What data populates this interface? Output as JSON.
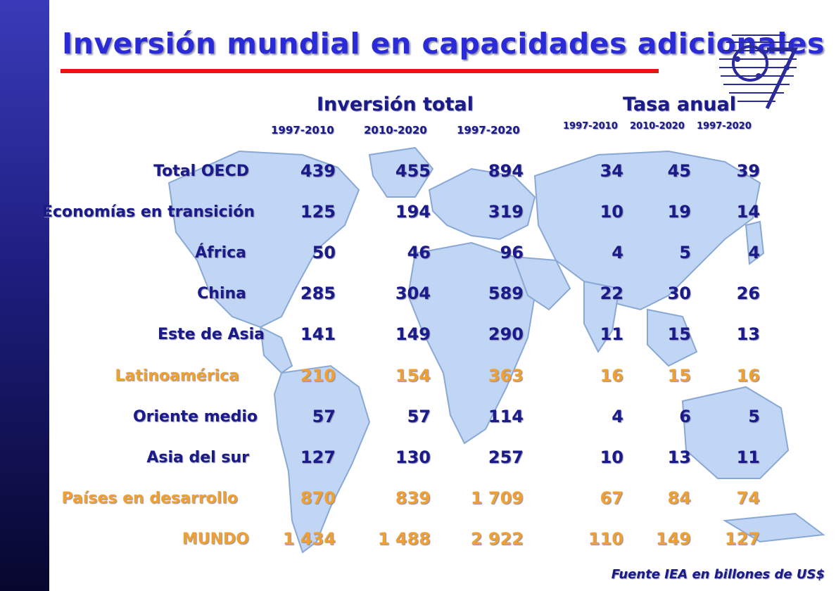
{
  "slide": {
    "title": "Inversión mundial en capacidades adicionales",
    "accent_color": "#2a2ad8",
    "underline_color": "#ee1111",
    "highlight_color": "#f0a030",
    "sidebar_icon": "logo-icon",
    "source": "Fuente IEA en billones de US$"
  },
  "headers": {
    "inversion_total": "Inversión total",
    "tasa_anual": "Tasa anual",
    "periods_total": [
      "1997-2010",
      "2010-2020",
      "1997-2020"
    ],
    "periods_tasa": [
      "1997-2010",
      "2010-2020",
      "1997-2020"
    ]
  },
  "table": {
    "rows": [
      {
        "label": "Total OECD",
        "highlight": false,
        "total": [
          "439",
          "455",
          "894"
        ],
        "tasa": [
          "34",
          "45",
          "39"
        ]
      },
      {
        "label": "Economías en transición",
        "highlight": false,
        "total": [
          "125",
          "194",
          "319"
        ],
        "tasa": [
          "10",
          "19",
          "14"
        ]
      },
      {
        "label": "África",
        "highlight": false,
        "total": [
          "50",
          "46",
          "96"
        ],
        "tasa": [
          "4",
          "5",
          "4"
        ]
      },
      {
        "label": "China",
        "highlight": false,
        "total": [
          "285",
          "304",
          "589"
        ],
        "tasa": [
          "22",
          "30",
          "26"
        ]
      },
      {
        "label": "Este de Asia",
        "highlight": false,
        "total": [
          "141",
          "149",
          "290"
        ],
        "tasa": [
          "11",
          "15",
          "13"
        ]
      },
      {
        "label": "Latinoamérica",
        "highlight": true,
        "total": [
          "210",
          "154",
          "363"
        ],
        "tasa": [
          "16",
          "15",
          "16"
        ]
      },
      {
        "label": "Oriente medio",
        "highlight": false,
        "total": [
          "57",
          "57",
          "114"
        ],
        "tasa": [
          "4",
          "6",
          "5"
        ]
      },
      {
        "label": "Asia del sur",
        "highlight": false,
        "total": [
          "127",
          "130",
          "257"
        ],
        "tasa": [
          "10",
          "13",
          "11"
        ]
      },
      {
        "label": "Países en desarrollo",
        "highlight": true,
        "total": [
          "870",
          "839",
          "1 709"
        ],
        "tasa": [
          "67",
          "84",
          "74"
        ]
      },
      {
        "label": "MUNDO",
        "highlight": true,
        "total": [
          "1 434",
          "1  488",
          "2 922"
        ],
        "tasa": [
          "110",
          "149",
          "127"
        ]
      }
    ]
  }
}
